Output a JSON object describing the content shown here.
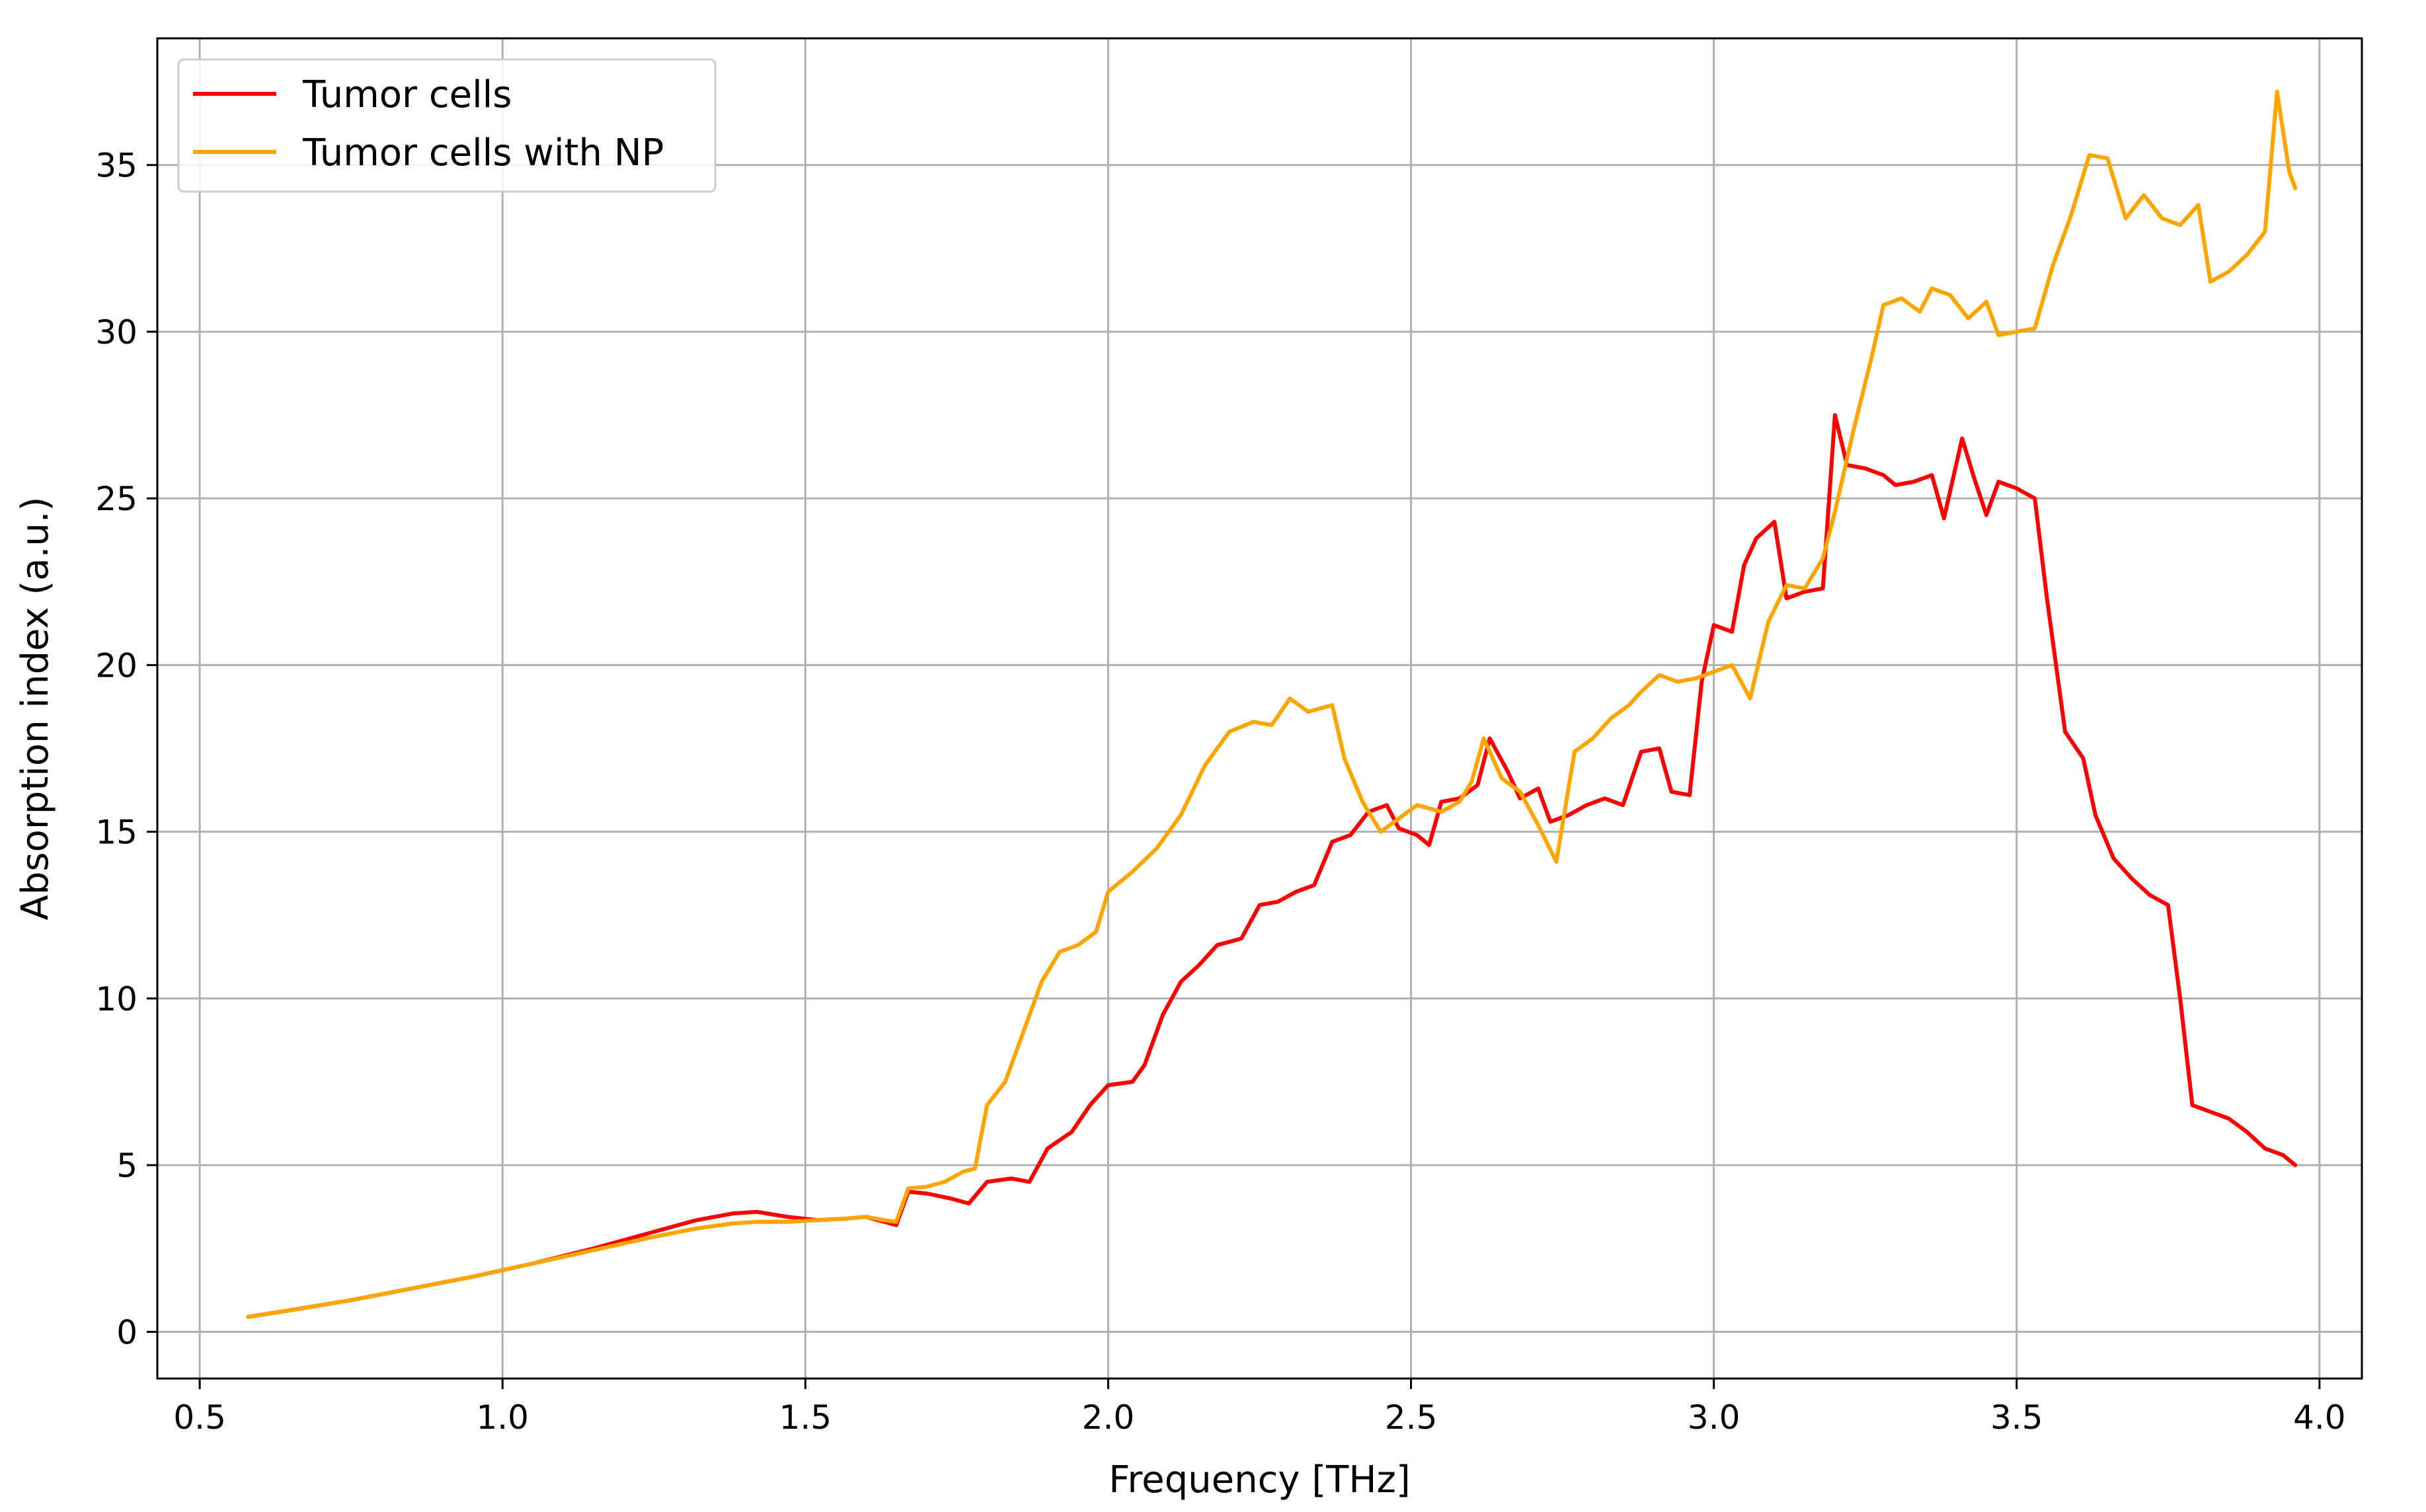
{
  "chart_data": {
    "type": "line",
    "title": "",
    "xlabel": "Frequency [THz]",
    "ylabel": "Absorption index (a.u.)",
    "xlim": [
      0.43,
      4.07
    ],
    "ylim": [
      -1.4,
      38.8
    ],
    "xticks": [
      0.5,
      1.0,
      1.5,
      2.0,
      2.5,
      3.0,
      3.5,
      4.0
    ],
    "xtick_labels": [
      "0.5",
      "1.0",
      "1.5",
      "2.0",
      "2.5",
      "3.0",
      "3.5",
      "4.0"
    ],
    "yticks": [
      0,
      5,
      10,
      15,
      20,
      25,
      30,
      35
    ],
    "ytick_labels": [
      "0",
      "5",
      "10",
      "15",
      "20",
      "25",
      "30",
      "35"
    ],
    "grid": true,
    "legend_position": "top-left",
    "series": [
      {
        "name": "Tumor cells",
        "color": "#ff0000",
        "points": [
          [
            0.58,
            0.45
          ],
          [
            0.65,
            0.65
          ],
          [
            0.75,
            0.95
          ],
          [
            0.85,
            1.3
          ],
          [
            0.95,
            1.65
          ],
          [
            1.05,
            2.05
          ],
          [
            1.15,
            2.5
          ],
          [
            1.25,
            3.0
          ],
          [
            1.32,
            3.35
          ],
          [
            1.38,
            3.55
          ],
          [
            1.42,
            3.6
          ],
          [
            1.47,
            3.45
          ],
          [
            1.52,
            3.35
          ],
          [
            1.57,
            3.4
          ],
          [
            1.6,
            3.45
          ],
          [
            1.63,
            3.3
          ],
          [
            1.65,
            3.2
          ],
          [
            1.67,
            4.2
          ],
          [
            1.7,
            4.15
          ],
          [
            1.74,
            4.0
          ],
          [
            1.77,
            3.85
          ],
          [
            1.8,
            4.5
          ],
          [
            1.84,
            4.6
          ],
          [
            1.87,
            4.5
          ],
          [
            1.9,
            5.5
          ],
          [
            1.94,
            6.0
          ],
          [
            1.97,
            6.8
          ],
          [
            2.0,
            7.4
          ],
          [
            2.04,
            7.5
          ],
          [
            2.06,
            8.0
          ],
          [
            2.09,
            9.5
          ],
          [
            2.12,
            10.5
          ],
          [
            2.15,
            11.0
          ],
          [
            2.18,
            11.6
          ],
          [
            2.22,
            11.8
          ],
          [
            2.25,
            12.8
          ],
          [
            2.28,
            12.9
          ],
          [
            2.31,
            13.2
          ],
          [
            2.34,
            13.4
          ],
          [
            2.37,
            14.7
          ],
          [
            2.4,
            14.9
          ],
          [
            2.43,
            15.6
          ],
          [
            2.46,
            15.8
          ],
          [
            2.48,
            15.1
          ],
          [
            2.51,
            14.9
          ],
          [
            2.53,
            14.6
          ],
          [
            2.55,
            15.9
          ],
          [
            2.58,
            16.0
          ],
          [
            2.61,
            16.4
          ],
          [
            2.63,
            17.8
          ],
          [
            2.66,
            16.8
          ],
          [
            2.68,
            16.0
          ],
          [
            2.71,
            16.3
          ],
          [
            2.73,
            15.3
          ],
          [
            2.76,
            15.5
          ],
          [
            2.79,
            15.8
          ],
          [
            2.82,
            16.0
          ],
          [
            2.85,
            15.8
          ],
          [
            2.88,
            17.4
          ],
          [
            2.91,
            17.5
          ],
          [
            2.93,
            16.2
          ],
          [
            2.96,
            16.1
          ],
          [
            2.98,
            19.5
          ],
          [
            3.0,
            21.2
          ],
          [
            3.03,
            21.0
          ],
          [
            3.05,
            23.0
          ],
          [
            3.07,
            23.8
          ],
          [
            3.1,
            24.3
          ],
          [
            3.12,
            22.0
          ],
          [
            3.15,
            22.2
          ],
          [
            3.18,
            22.3
          ],
          [
            3.2,
            27.5
          ],
          [
            3.22,
            26.0
          ],
          [
            3.25,
            25.9
          ],
          [
            3.28,
            25.7
          ],
          [
            3.3,
            25.4
          ],
          [
            3.33,
            25.5
          ],
          [
            3.36,
            25.7
          ],
          [
            3.38,
            24.4
          ],
          [
            3.41,
            26.8
          ],
          [
            3.43,
            25.6
          ],
          [
            3.45,
            24.5
          ],
          [
            3.47,
            25.5
          ],
          [
            3.5,
            25.3
          ],
          [
            3.53,
            25.0
          ],
          [
            3.55,
            22.0
          ],
          [
            3.58,
            18.0
          ],
          [
            3.61,
            17.2
          ],
          [
            3.63,
            15.5
          ],
          [
            3.66,
            14.2
          ],
          [
            3.69,
            13.6
          ],
          [
            3.72,
            13.1
          ],
          [
            3.75,
            12.8
          ],
          [
            3.77,
            10.0
          ],
          [
            3.79,
            6.8
          ],
          [
            3.82,
            6.6
          ],
          [
            3.85,
            6.4
          ],
          [
            3.88,
            6.0
          ],
          [
            3.91,
            5.5
          ],
          [
            3.94,
            5.3
          ],
          [
            3.96,
            5.0
          ]
        ]
      },
      {
        "name": "Tumor cells with NP",
        "color": "#ffa500",
        "points": [
          [
            0.58,
            0.45
          ],
          [
            0.65,
            0.65
          ],
          [
            0.75,
            0.95
          ],
          [
            0.85,
            1.3
          ],
          [
            0.95,
            1.65
          ],
          [
            1.05,
            2.05
          ],
          [
            1.15,
            2.45
          ],
          [
            1.25,
            2.85
          ],
          [
            1.32,
            3.1
          ],
          [
            1.38,
            3.25
          ],
          [
            1.42,
            3.3
          ],
          [
            1.47,
            3.3
          ],
          [
            1.52,
            3.35
          ],
          [
            1.57,
            3.4
          ],
          [
            1.6,
            3.45
          ],
          [
            1.63,
            3.35
          ],
          [
            1.65,
            3.3
          ],
          [
            1.67,
            4.3
          ],
          [
            1.7,
            4.35
          ],
          [
            1.73,
            4.5
          ],
          [
            1.76,
            4.8
          ],
          [
            1.78,
            4.9
          ],
          [
            1.8,
            6.8
          ],
          [
            1.83,
            7.5
          ],
          [
            1.86,
            9.0
          ],
          [
            1.89,
            10.5
          ],
          [
            1.92,
            11.4
          ],
          [
            1.95,
            11.6
          ],
          [
            1.98,
            12.0
          ],
          [
            2.0,
            13.2
          ],
          [
            2.04,
            13.8
          ],
          [
            2.08,
            14.5
          ],
          [
            2.12,
            15.5
          ],
          [
            2.16,
            17.0
          ],
          [
            2.2,
            18.0
          ],
          [
            2.24,
            18.3
          ],
          [
            2.27,
            18.2
          ],
          [
            2.3,
            19.0
          ],
          [
            2.33,
            18.6
          ],
          [
            2.37,
            18.8
          ],
          [
            2.39,
            17.2
          ],
          [
            2.42,
            15.9
          ],
          [
            2.45,
            15.0
          ],
          [
            2.48,
            15.4
          ],
          [
            2.51,
            15.8
          ],
          [
            2.55,
            15.6
          ],
          [
            2.58,
            15.9
          ],
          [
            2.6,
            16.5
          ],
          [
            2.62,
            17.8
          ],
          [
            2.65,
            16.6
          ],
          [
            2.68,
            16.2
          ],
          [
            2.71,
            15.2
          ],
          [
            2.74,
            14.1
          ],
          [
            2.77,
            17.4
          ],
          [
            2.8,
            17.8
          ],
          [
            2.83,
            18.4
          ],
          [
            2.86,
            18.8
          ],
          [
            2.88,
            19.2
          ],
          [
            2.91,
            19.7
          ],
          [
            2.94,
            19.5
          ],
          [
            2.97,
            19.6
          ],
          [
            3.0,
            19.8
          ],
          [
            3.03,
            20.0
          ],
          [
            3.06,
            19.0
          ],
          [
            3.09,
            21.3
          ],
          [
            3.12,
            22.4
          ],
          [
            3.15,
            22.3
          ],
          [
            3.18,
            23.2
          ],
          [
            3.2,
            24.6
          ],
          [
            3.23,
            27.0
          ],
          [
            3.26,
            29.2
          ],
          [
            3.28,
            30.8
          ],
          [
            3.31,
            31.0
          ],
          [
            3.34,
            30.6
          ],
          [
            3.36,
            31.3
          ],
          [
            3.39,
            31.1
          ],
          [
            3.42,
            30.4
          ],
          [
            3.45,
            30.9
          ],
          [
            3.47,
            29.9
          ],
          [
            3.5,
            30.0
          ],
          [
            3.53,
            30.1
          ],
          [
            3.56,
            32.0
          ],
          [
            3.59,
            33.5
          ],
          [
            3.62,
            35.3
          ],
          [
            3.65,
            35.2
          ],
          [
            3.68,
            33.4
          ],
          [
            3.71,
            34.1
          ],
          [
            3.74,
            33.4
          ],
          [
            3.77,
            33.2
          ],
          [
            3.8,
            33.8
          ],
          [
            3.82,
            31.5
          ],
          [
            3.85,
            31.8
          ],
          [
            3.88,
            32.3
          ],
          [
            3.91,
            33.0
          ],
          [
            3.93,
            37.2
          ],
          [
            3.95,
            34.8
          ],
          [
            3.96,
            34.3
          ]
        ]
      }
    ]
  }
}
